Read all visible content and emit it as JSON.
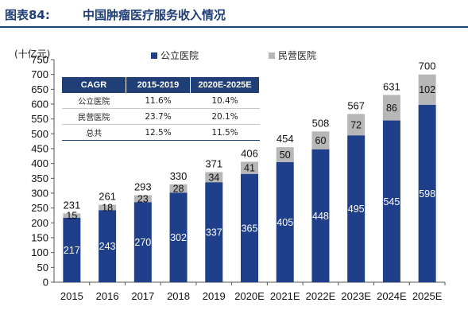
{
  "figure": {
    "label": "图表84:",
    "title": "中国肿瘤医疗服务收入情况"
  },
  "chart_data": {
    "type": "bar",
    "stacked": true,
    "unit_label": "(十亿元)",
    "categories": [
      "2015",
      "2016",
      "2017",
      "2018",
      "2019",
      "2020E",
      "2021E",
      "2022E",
      "2023E",
      "2024E",
      "2025E"
    ],
    "series": [
      {
        "name": "公立医院",
        "color": "#1f3f8a",
        "values": [
          217,
          243,
          270,
          302,
          337,
          365,
          405,
          448,
          495,
          545,
          598
        ]
      },
      {
        "name": "民营医院",
        "color": "#b7b7b7",
        "values": [
          15,
          18,
          23,
          28,
          34,
          41,
          50,
          60,
          72,
          86,
          102
        ]
      }
    ],
    "totals": [
      231,
      261,
      293,
      330,
      371,
      406,
      454,
      508,
      567,
      631,
      700
    ],
    "ylim": [
      0,
      750
    ],
    "yticks": [
      0,
      50,
      100,
      150,
      200,
      250,
      300,
      350,
      400,
      450,
      500,
      550,
      600,
      650,
      700,
      750
    ],
    "legend_position": "top",
    "grid": false
  },
  "cagr_table": {
    "headers": [
      "CAGR",
      "2015-2019",
      "2020E-2025E"
    ],
    "rows": [
      [
        "公立医院",
        "11.6%",
        "10.4%"
      ],
      [
        "民营医院",
        "23.7%",
        "20.1%"
      ],
      [
        "总共",
        "12.5%",
        "11.5%"
      ]
    ]
  }
}
